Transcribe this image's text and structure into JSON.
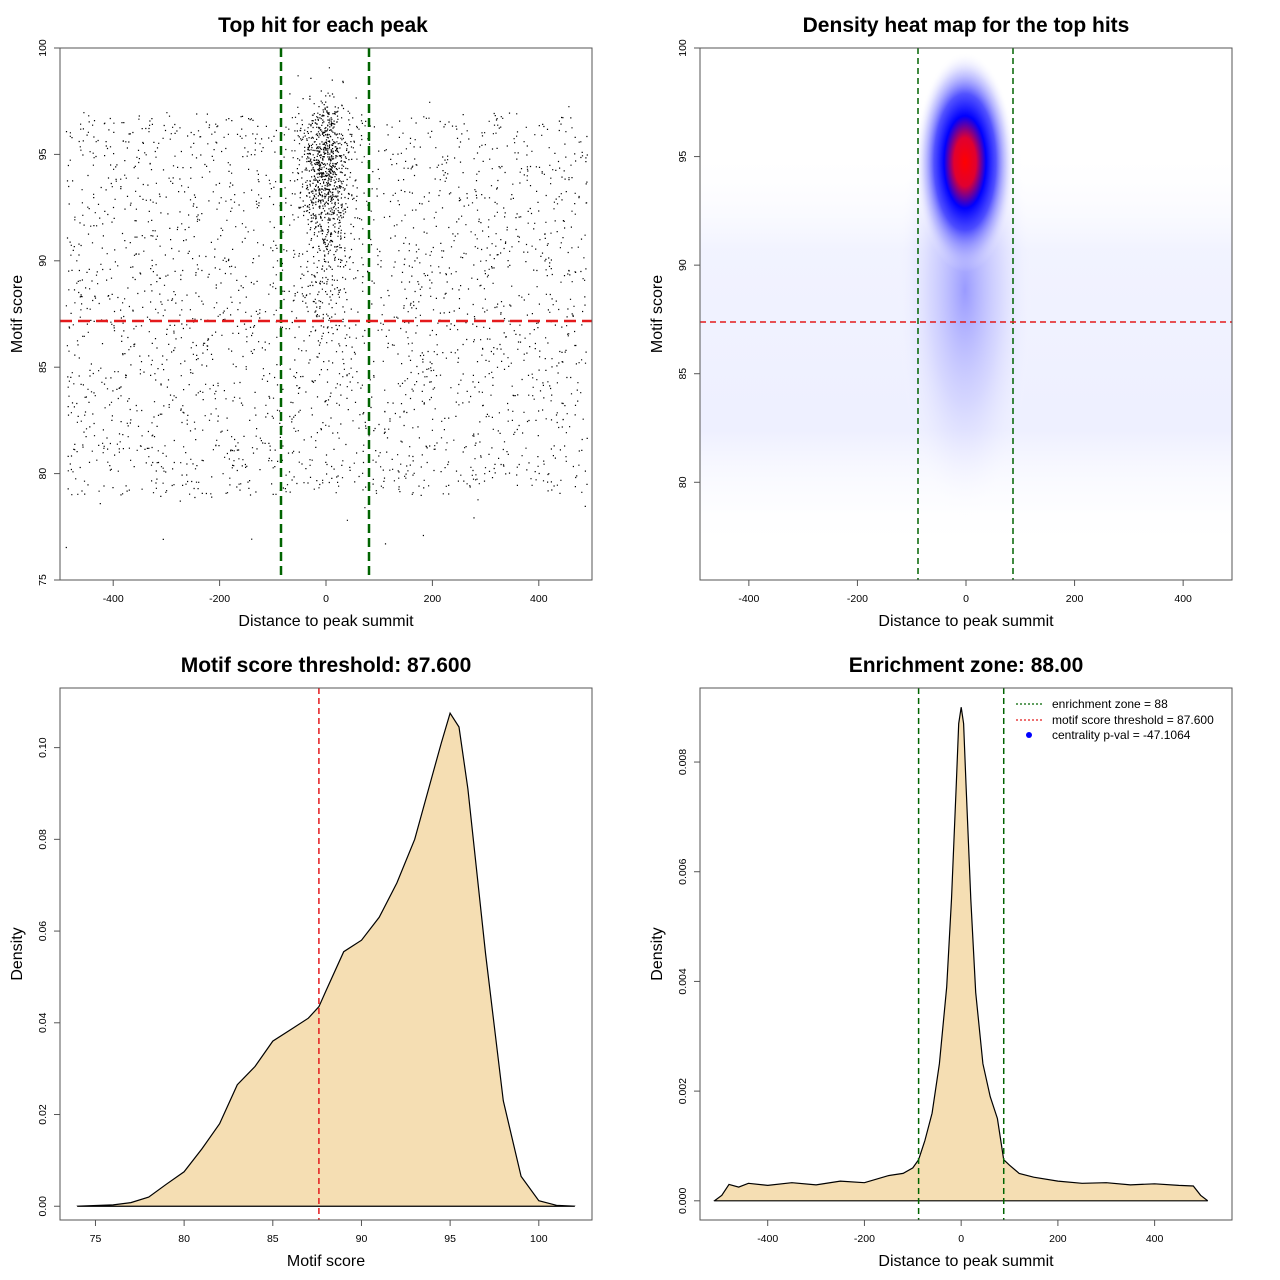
{
  "chart_data": [
    {
      "type": "scatter",
      "title": "Top hit for each peak",
      "xlabel": "Distance to peak summit",
      "ylabel": "Motif score",
      "xlim": [
        -500,
        500
      ],
      "ylim": [
        75,
        100
      ],
      "x_ticks": [
        "-400",
        "-200",
        "0",
        "200",
        "400"
      ],
      "y_ticks": [
        "75",
        "80",
        "85",
        "90",
        "95",
        "100"
      ],
      "vlines": [
        -88,
        88
      ],
      "hline": 87.6,
      "colors": {
        "points": "#000000",
        "vlines": "#006400",
        "hline": "#e41a1c"
      }
    },
    {
      "type": "heatmap",
      "title": "Density heat map for the top hits",
      "xlabel": "Distance to peak summit",
      "ylabel": "Motif score",
      "xlim": [
        -490,
        490
      ],
      "ylim": [
        75.5,
        100
      ],
      "x_ticks": [
        "-400",
        "-200",
        "0",
        "200",
        "400"
      ],
      "y_ticks": [
        "80",
        "85",
        "90",
        "95",
        "100"
      ],
      "vlines": [
        -88,
        88
      ],
      "hline": 87.6,
      "peak": {
        "x": 0,
        "y": 95.5
      },
      "colors": {
        "low": "#ffffff",
        "mid": "#0000ff",
        "high": "#ff0000",
        "vlines": "#006400",
        "hline": "#e41a1c"
      }
    },
    {
      "type": "area",
      "title": "Motif score threshold: 87.600",
      "xlabel": "Motif score",
      "ylabel": "Density",
      "xlim": [
        73,
        103
      ],
      "ylim": [
        -0.003,
        0.113
      ],
      "x_ticks": [
        "75",
        "80",
        "85",
        "90",
        "95",
        "100"
      ],
      "y_ticks": [
        "0.00",
        "0.02",
        "0.04",
        "0.06",
        "0.08",
        "0.10"
      ],
      "x": [
        74,
        76,
        77,
        78,
        79,
        80,
        81,
        82,
        83,
        84,
        85,
        86,
        87,
        87.6,
        88,
        89,
        90,
        91,
        92,
        93,
        94,
        94.5,
        95,
        95.5,
        96,
        97,
        98,
        99,
        100,
        101,
        102
      ],
      "y": [
        0,
        0.0003,
        0.0008,
        0.002,
        0.0048,
        0.0075,
        0.0125,
        0.018,
        0.0265,
        0.0305,
        0.036,
        0.0385,
        0.041,
        0.0435,
        0.047,
        0.0555,
        0.058,
        0.063,
        0.0705,
        0.08,
        0.094,
        0.101,
        0.1075,
        0.1045,
        0.091,
        0.055,
        0.023,
        0.0065,
        0.0012,
        0.0002,
        0
      ],
      "vline": 87.6,
      "colors": {
        "fill": "#f5deb3",
        "line": "#000000",
        "vline": "#e41a1c"
      }
    },
    {
      "type": "area",
      "title": "Enrichment zone: 88.00",
      "xlabel": "Distance to peak summit",
      "ylabel": "Density",
      "xlim": [
        -540,
        560
      ],
      "ylim": [
        -0.00035,
        0.00935
      ],
      "x_ticks": [
        "-400",
        "-200",
        "0",
        "200",
        "400"
      ],
      "y_ticks": [
        "0.000",
        "0.002",
        "0.004",
        "0.006",
        "0.008"
      ],
      "x": [
        -510,
        -495,
        -480,
        -460,
        -440,
        -400,
        -350,
        -300,
        -250,
        -200,
        -150,
        -120,
        -100,
        -88,
        -75,
        -60,
        -45,
        -30,
        -20,
        -10,
        -5,
        0,
        5,
        10,
        20,
        30,
        45,
        60,
        75,
        88,
        100,
        120,
        150,
        200,
        250,
        300,
        350,
        400,
        450,
        480,
        495,
        510
      ],
      "y": [
        0,
        0.0001,
        0.0003,
        0.00025,
        0.00032,
        0.00028,
        0.00033,
        0.00029,
        0.00036,
        0.00033,
        0.00046,
        0.0005,
        0.0006,
        0.00075,
        0.0011,
        0.0016,
        0.0025,
        0.0039,
        0.0055,
        0.0076,
        0.0087,
        0.009,
        0.0087,
        0.0076,
        0.0055,
        0.0038,
        0.0025,
        0.0019,
        0.0015,
        0.00075,
        0.00065,
        0.0005,
        0.00043,
        0.00036,
        0.00032,
        0.00033,
        0.00029,
        0.00031,
        0.00028,
        0.00027,
        0.0001,
        0
      ],
      "vlines": [
        -88,
        88
      ],
      "legend": [
        {
          "label": "enrichment zone = 88",
          "color": "#006400",
          "style": "dotted-line"
        },
        {
          "label": "motif score threshold = 87.600",
          "color": "#e41a1c",
          "style": "dotted-line"
        },
        {
          "label": "centrality p-val = -47.1064",
          "color": "#0000ff",
          "style": "point"
        }
      ],
      "legend_position": "top-right",
      "colors": {
        "fill": "#f5deb3",
        "line": "#000000",
        "vlines": "#006400"
      }
    }
  ]
}
